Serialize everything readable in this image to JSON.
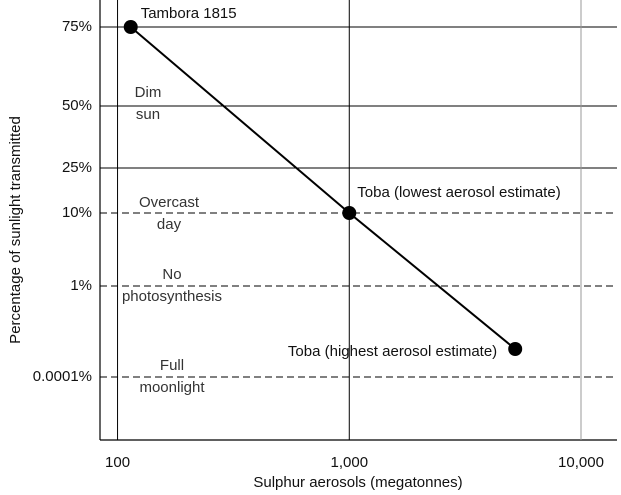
{
  "chart_data": {
    "type": "line",
    "xlabel": "Sulphur aerosols (megatonnes)",
    "ylabel": "Percentage of sunlight transmitted",
    "xscale": "log",
    "xlim": [
      84,
      14300
    ],
    "xticks": [
      100,
      {
        "value": 1000,
        "label": "1,000"
      },
      {
        "value": 10000,
        "label": "10,000"
      }
    ],
    "yticks": [
      {
        "value": 75,
        "label": "75%"
      },
      {
        "value": 50,
        "label": "50%"
      },
      {
        "value": 25,
        "label": "25%"
      },
      {
        "value": 10,
        "label": "10%"
      },
      {
        "value": 1,
        "label": "1%"
      },
      {
        "value": 0.0001,
        "label": "0.0001%"
      }
    ],
    "x": [
      114,
      1000,
      5200
    ],
    "values": [
      75,
      10,
      0.0017
    ],
    "point_labels": [
      "Tambora 1815",
      "Toba (lowest aerosol estimate)",
      "Toba (highest aerosol estimate)"
    ],
    "color": "#000000",
    "zones": [
      [
        "Dim",
        "sun"
      ],
      [
        "Overcast",
        "day"
      ],
      [
        "No",
        "photosynthesis"
      ],
      [
        "Full",
        "moonlight"
      ]
    ]
  }
}
